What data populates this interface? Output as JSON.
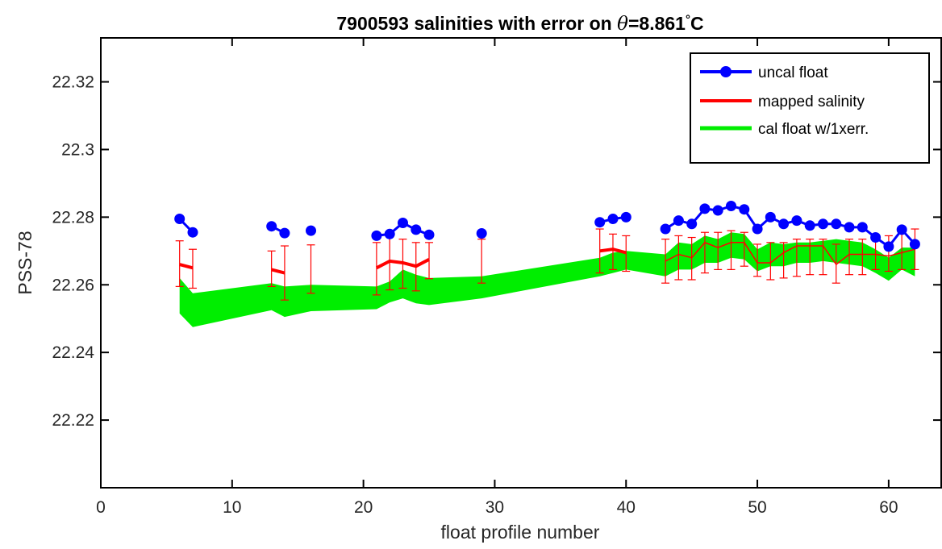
{
  "chart_data": {
    "type": "line",
    "title": {
      "prefix": "7900593 salinities with error on ",
      "theta_symbol": "θ",
      "value": "=8.861",
      "degree": "°",
      "unit": "C"
    },
    "xlabel": "float profile number",
    "ylabel": "PSS-78",
    "xlim": [
      0,
      64
    ],
    "ylim": [
      22.2,
      22.333
    ],
    "xticks": [
      0,
      10,
      20,
      30,
      40,
      50,
      60
    ],
    "xtick_labels": [
      "0",
      "10",
      "20",
      "30",
      "40",
      "50",
      "60"
    ],
    "yticks": [
      22.22,
      22.24,
      22.26,
      22.28,
      22.3,
      22.32
    ],
    "ytick_labels": [
      "22.22",
      "22.24",
      "22.26",
      "22.28",
      "22.3",
      "22.32"
    ],
    "grid": false,
    "legend_position": "top-right",
    "series": [
      {
        "name": "uncal float",
        "style": "line-markers",
        "color": "#0000ff",
        "segments": [
          [
            [
              6,
              22.2795
            ],
            [
              7,
              22.2755
            ]
          ],
          [
            [
              13,
              22.2773
            ],
            [
              14,
              22.2753
            ]
          ],
          [
            [
              16,
              22.276
            ]
          ],
          [
            [
              21,
              22.2745
            ],
            [
              22,
              22.275
            ],
            [
              23,
              22.2783
            ],
            [
              24,
              22.2763
            ],
            [
              25,
              22.2748
            ]
          ],
          [
            [
              29,
              22.2752
            ]
          ],
          [
            [
              38,
              22.2785
            ],
            [
              39,
              22.2795
            ],
            [
              40,
              22.28
            ]
          ],
          [
            [
              43,
              22.2765
            ],
            [
              44,
              22.279
            ],
            [
              45,
              22.278
            ],
            [
              46,
              22.2825
            ],
            [
              47,
              22.282
            ],
            [
              48,
              22.2833
            ],
            [
              49,
              22.2823
            ],
            [
              50,
              22.2765
            ],
            [
              51,
              22.28
            ],
            [
              52,
              22.278
            ],
            [
              53,
              22.279
            ],
            [
              54,
              22.2775
            ],
            [
              55,
              22.278
            ],
            [
              56,
              22.278
            ],
            [
              57,
              22.277
            ],
            [
              58,
              22.277
            ],
            [
              59,
              22.274
            ],
            [
              60,
              22.2713
            ],
            [
              61,
              22.2763
            ],
            [
              62,
              22.272
            ]
          ]
        ]
      },
      {
        "name": "mapped salinity",
        "style": "line-errorbars",
        "color": "#ff0000",
        "segments": [
          [
            [
              6,
              22.266
            ],
            [
              7,
              22.265
            ]
          ],
          [
            [
              13,
              22.2645
            ],
            [
              14,
              22.2635
            ]
          ],
          [
            [
              16,
              22.2645
            ]
          ],
          [
            [
              21,
              22.265
            ],
            [
              22,
              22.267
            ],
            [
              23,
              22.2665
            ],
            [
              24,
              22.2655
            ],
            [
              25,
              22.2675
            ]
          ],
          [
            [
              29,
              22.267
            ]
          ],
          [
            [
              38,
              22.27
            ],
            [
              39,
              22.2705
            ],
            [
              40,
              22.2695
            ]
          ],
          [
            [
              43,
              22.267
            ],
            [
              44,
              22.269
            ],
            [
              45,
              22.268
            ],
            [
              46,
              22.2725
            ],
            [
              47,
              22.271
            ],
            [
              48,
              22.2725
            ],
            [
              49,
              22.2725
            ],
            [
              50,
              22.2665
            ],
            [
              51,
              22.2665
            ],
            [
              52,
              22.2695
            ],
            [
              53,
              22.2715
            ],
            [
              54,
              22.2715
            ],
            [
              55,
              22.2715
            ],
            [
              56,
              22.266
            ],
            [
              57,
              22.269
            ],
            [
              58,
              22.269
            ],
            [
              59,
              22.269
            ],
            [
              60,
              22.2685
            ],
            [
              61,
              22.2695
            ],
            [
              62,
              22.2705
            ]
          ]
        ],
        "errors": [
          [
            6,
            22.2595,
            22.273
          ],
          [
            7,
            22.259,
            22.2705
          ],
          [
            13,
            22.2595,
            22.27
          ],
          [
            14,
            22.2555,
            22.2715
          ],
          [
            16,
            22.2575,
            22.2718
          ],
          [
            21,
            22.257,
            22.2725
          ],
          [
            22,
            22.2585,
            22.2745
          ],
          [
            23,
            22.259,
            22.2735
          ],
          [
            24,
            22.2582,
            22.2725
          ],
          [
            25,
            22.2618,
            22.2725
          ],
          [
            29,
            22.2605,
            22.2735
          ],
          [
            38,
            22.2635,
            22.2765
          ],
          [
            39,
            22.2645,
            22.275
          ],
          [
            40,
            22.264,
            22.2745
          ],
          [
            43,
            22.2605,
            22.2735
          ],
          [
            44,
            22.2615,
            22.2745
          ],
          [
            45,
            22.2615,
            22.274
          ],
          [
            46,
            22.2635,
            22.2755
          ],
          [
            47,
            22.2645,
            22.2755
          ],
          [
            48,
            22.2645,
            22.276
          ],
          [
            49,
            22.2655,
            22.2755
          ],
          [
            50,
            22.2625,
            22.272
          ],
          [
            51,
            22.2615,
            22.2725
          ],
          [
            52,
            22.262,
            22.2725
          ],
          [
            53,
            22.2625,
            22.2735
          ],
          [
            54,
            22.263,
            22.2735
          ],
          [
            55,
            22.263,
            22.2735
          ],
          [
            56,
            22.2605,
            22.272
          ],
          [
            57,
            22.263,
            22.2735
          ],
          [
            58,
            22.263,
            22.2735
          ],
          [
            59,
            22.2645,
            22.2745
          ],
          [
            60,
            22.264,
            22.2745
          ],
          [
            61,
            22.2645,
            22.2755
          ],
          [
            62,
            22.2645,
            22.2765
          ]
        ]
      },
      {
        "name": "cal float w/1xerr.",
        "style": "band",
        "color": "#00ee00",
        "upper": [
          [
            6,
            22.262
          ],
          [
            7,
            22.2575
          ],
          [
            13,
            22.2605
          ],
          [
            14,
            22.2595
          ],
          [
            16,
            22.26
          ],
          [
            21,
            22.2595
          ],
          [
            22,
            22.261
          ],
          [
            23,
            22.2645
          ],
          [
            24,
            22.263
          ],
          [
            25,
            22.262
          ],
          [
            29,
            22.2625
          ],
          [
            38,
            22.268
          ],
          [
            39,
            22.2695
          ],
          [
            40,
            22.27
          ],
          [
            43,
            22.269
          ],
          [
            44,
            22.2725
          ],
          [
            45,
            22.272
          ],
          [
            46,
            22.2745
          ],
          [
            47,
            22.2735
          ],
          [
            48,
            22.2755
          ],
          [
            49,
            22.275
          ],
          [
            50,
            22.2705
          ],
          [
            51,
            22.2725
          ],
          [
            52,
            22.272
          ],
          [
            53,
            22.2725
          ],
          [
            54,
            22.2725
          ],
          [
            55,
            22.273
          ],
          [
            56,
            22.2735
          ],
          [
            57,
            22.273
          ],
          [
            58,
            22.2725
          ],
          [
            59,
            22.2705
          ],
          [
            60,
            22.268
          ],
          [
            61,
            22.271
          ],
          [
            62,
            22.271
          ]
        ],
        "lower": [
          [
            6,
            22.2515
          ],
          [
            7,
            22.2475
          ],
          [
            13,
            22.2525
          ],
          [
            14,
            22.2505
          ],
          [
            16,
            22.2522
          ],
          [
            21,
            22.2528
          ],
          [
            22,
            22.2548
          ],
          [
            23,
            22.256
          ],
          [
            24,
            22.2545
          ],
          [
            25,
            22.254
          ],
          [
            29,
            22.256
          ],
          [
            38,
            22.2625
          ],
          [
            39,
            22.2635
          ],
          [
            40,
            22.2645
          ],
          [
            43,
            22.2625
          ],
          [
            44,
            22.2645
          ],
          [
            45,
            22.2645
          ],
          [
            46,
            22.2665
          ],
          [
            47,
            22.2665
          ],
          [
            48,
            22.268
          ],
          [
            49,
            22.2675
          ],
          [
            50,
            22.264
          ],
          [
            51,
            22.2655
          ],
          [
            52,
            22.2655
          ],
          [
            53,
            22.2665
          ],
          [
            54,
            22.2665
          ],
          [
            55,
            22.267
          ],
          [
            56,
            22.2665
          ],
          [
            57,
            22.266
          ],
          [
            58,
            22.2655
          ],
          [
            59,
            22.2635
          ],
          [
            60,
            22.2612
          ],
          [
            61,
            22.2645
          ],
          [
            62,
            22.2625
          ]
        ]
      }
    ]
  }
}
